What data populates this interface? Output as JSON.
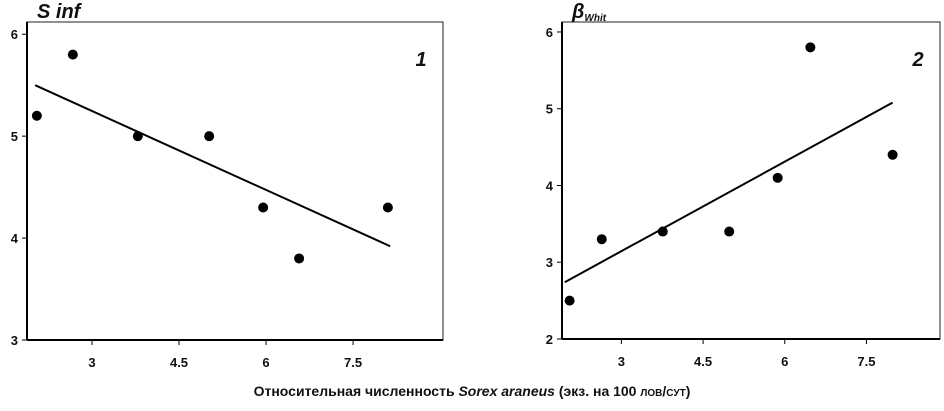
{
  "chart_data": [
    {
      "type": "scatter",
      "title": "S inf",
      "annotation": "1",
      "x": [
        2.05,
        2.67,
        3.79,
        5.02,
        5.95,
        6.57,
        8.1
      ],
      "values": [
        5.2,
        5.8,
        5.0,
        5.0,
        4.3,
        3.8,
        4.3
      ],
      "color": "#000000",
      "fit": {
        "x": [
          2.02,
          8.14
        ],
        "values": [
          5.5,
          3.92
        ]
      },
      "xlim": [
        1.88,
        9.05
      ],
      "ylim": [
        3,
        6.12
      ],
      "xticks": [
        3,
        4.5,
        6,
        7.5
      ],
      "yticks": [
        3,
        4,
        5,
        6
      ]
    },
    {
      "type": "scatter",
      "title": "β",
      "title_subscript": "Whit",
      "annotation": "2",
      "x": [
        2.05,
        2.64,
        3.76,
        4.98,
        5.87,
        6.47,
        7.98
      ],
      "values": [
        2.5,
        3.3,
        3.4,
        3.4,
        4.1,
        5.8,
        4.4
      ],
      "color": "#000000",
      "fit": {
        "x": [
          1.96,
          7.98
        ],
        "values": [
          2.74,
          5.08
        ]
      },
      "xlim": [
        1.91,
        8.85
      ],
      "ylim": [
        2,
        6.13
      ],
      "xticks": [
        3,
        4.5,
        6,
        7.5
      ],
      "yticks": [
        2,
        3,
        4,
        5,
        6
      ]
    }
  ],
  "x_label_parts": [
    "Относительная численность ",
    "Sorex araneus",
    " (экз. на 100 ",
    "лов/сут",
    ")"
  ]
}
